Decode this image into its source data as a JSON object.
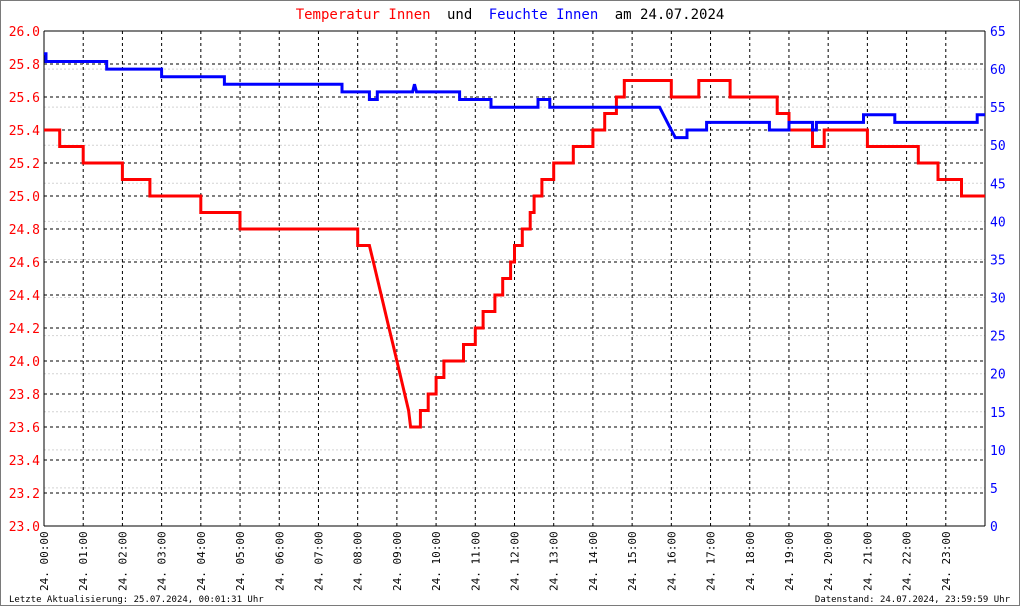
{
  "chart_data": {
    "type": "line",
    "title": {
      "series1_name": "Temperatur Innen",
      "connector": "und",
      "series2_name": "Feuchte Innen",
      "suffix": "am 24.07.2024"
    },
    "x_ticks": [
      "24. 00:00",
      "24. 01:00",
      "24. 02:00",
      "24. 03:00",
      "24. 04:00",
      "24. 05:00",
      "24. 06:00",
      "24. 07:00",
      "24. 08:00",
      "24. 09:00",
      "24. 10:00",
      "24. 11:00",
      "24. 12:00",
      "24. 13:00",
      "24. 14:00",
      "24. 15:00",
      "24. 16:00",
      "24. 17:00",
      "24. 18:00",
      "24. 19:00",
      "24. 20:00",
      "24. 21:00",
      "24. 22:00",
      "24. 23:00"
    ],
    "x_unit": "hours",
    "xlim": [
      0,
      24
    ],
    "ylim_left": [
      23.0,
      26.0
    ],
    "ylim_right": [
      0,
      65
    ],
    "y_left_ticks": [
      "23.0",
      "23.2",
      "23.4",
      "23.6",
      "23.8",
      "24.0",
      "24.2",
      "24.4",
      "24.6",
      "24.8",
      "25.0",
      "25.2",
      "25.4",
      "25.6",
      "25.8",
      "26.0"
    ],
    "y_right_ticks": [
      "0",
      "5",
      "10",
      "15",
      "20",
      "25",
      "30",
      "35",
      "40",
      "45",
      "50",
      "55",
      "60",
      "65"
    ],
    "grid": true,
    "series": [
      {
        "name": "Temperatur Innen",
        "axis": "left",
        "color": "#ff0000",
        "points": [
          [
            0.0,
            25.4
          ],
          [
            0.4,
            25.4
          ],
          [
            0.4,
            25.3
          ],
          [
            1.0,
            25.3
          ],
          [
            1.0,
            25.2
          ],
          [
            2.0,
            25.2
          ],
          [
            2.0,
            25.1
          ],
          [
            2.7,
            25.1
          ],
          [
            2.7,
            25.0
          ],
          [
            4.0,
            25.0
          ],
          [
            4.0,
            24.9
          ],
          [
            5.0,
            24.9
          ],
          [
            5.0,
            24.8
          ],
          [
            8.0,
            24.8
          ],
          [
            8.0,
            24.7
          ],
          [
            8.3,
            24.7
          ],
          [
            8.4,
            24.6
          ],
          [
            8.5,
            24.5
          ],
          [
            8.6,
            24.4
          ],
          [
            8.7,
            24.3
          ],
          [
            8.8,
            24.2
          ],
          [
            8.9,
            24.1
          ],
          [
            9.0,
            24.0
          ],
          [
            9.1,
            23.9
          ],
          [
            9.2,
            23.8
          ],
          [
            9.3,
            23.7
          ],
          [
            9.35,
            23.6
          ],
          [
            9.6,
            23.6
          ],
          [
            9.6,
            23.7
          ],
          [
            9.8,
            23.7
          ],
          [
            9.8,
            23.8
          ],
          [
            10.0,
            23.8
          ],
          [
            10.0,
            23.9
          ],
          [
            10.2,
            23.9
          ],
          [
            10.2,
            24.0
          ],
          [
            10.7,
            24.0
          ],
          [
            10.7,
            24.1
          ],
          [
            11.0,
            24.1
          ],
          [
            11.0,
            24.2
          ],
          [
            11.2,
            24.2
          ],
          [
            11.2,
            24.3
          ],
          [
            11.5,
            24.3
          ],
          [
            11.5,
            24.4
          ],
          [
            11.7,
            24.4
          ],
          [
            11.7,
            24.5
          ],
          [
            11.9,
            24.5
          ],
          [
            11.9,
            24.6
          ],
          [
            12.0,
            24.6
          ],
          [
            12.0,
            24.7
          ],
          [
            12.2,
            24.7
          ],
          [
            12.2,
            24.8
          ],
          [
            12.4,
            24.8
          ],
          [
            12.4,
            24.9
          ],
          [
            12.5,
            24.9
          ],
          [
            12.5,
            25.0
          ],
          [
            12.7,
            25.0
          ],
          [
            12.7,
            25.1
          ],
          [
            13.0,
            25.1
          ],
          [
            13.0,
            25.2
          ],
          [
            13.5,
            25.2
          ],
          [
            13.5,
            25.3
          ],
          [
            14.0,
            25.3
          ],
          [
            14.0,
            25.4
          ],
          [
            14.3,
            25.4
          ],
          [
            14.3,
            25.5
          ],
          [
            14.6,
            25.5
          ],
          [
            14.6,
            25.6
          ],
          [
            14.8,
            25.6
          ],
          [
            14.8,
            25.7
          ],
          [
            16.0,
            25.7
          ],
          [
            16.0,
            25.6
          ],
          [
            16.7,
            25.6
          ],
          [
            16.7,
            25.7
          ],
          [
            17.5,
            25.7
          ],
          [
            17.5,
            25.6
          ],
          [
            18.7,
            25.6
          ],
          [
            18.7,
            25.5
          ],
          [
            19.0,
            25.5
          ],
          [
            19.0,
            25.4
          ],
          [
            19.6,
            25.4
          ],
          [
            19.6,
            25.3
          ],
          [
            19.9,
            25.3
          ],
          [
            19.9,
            25.4
          ],
          [
            21.0,
            25.4
          ],
          [
            21.0,
            25.3
          ],
          [
            22.3,
            25.3
          ],
          [
            22.3,
            25.2
          ],
          [
            22.8,
            25.2
          ],
          [
            22.8,
            25.1
          ],
          [
            23.4,
            25.1
          ],
          [
            23.4,
            25.0
          ],
          [
            24.0,
            25.0
          ]
        ]
      },
      {
        "name": "Feuchte Innen",
        "axis": "right",
        "color": "#0000ff",
        "points": [
          [
            0.0,
            62
          ],
          [
            0.05,
            62
          ],
          [
            0.05,
            61
          ],
          [
            1.6,
            61
          ],
          [
            1.6,
            60
          ],
          [
            3.0,
            60
          ],
          [
            3.0,
            59
          ],
          [
            4.6,
            59
          ],
          [
            4.6,
            58
          ],
          [
            7.6,
            58
          ],
          [
            7.6,
            57
          ],
          [
            8.3,
            57
          ],
          [
            8.3,
            56
          ],
          [
            8.5,
            56
          ],
          [
            8.5,
            57
          ],
          [
            9.4,
            57
          ],
          [
            9.45,
            58
          ],
          [
            9.5,
            57
          ],
          [
            10.6,
            57
          ],
          [
            10.6,
            56
          ],
          [
            11.4,
            56
          ],
          [
            11.4,
            55
          ],
          [
            12.6,
            55
          ],
          [
            12.6,
            56
          ],
          [
            12.9,
            56
          ],
          [
            12.9,
            55
          ],
          [
            15.7,
            55
          ],
          [
            15.9,
            53
          ],
          [
            16.0,
            52
          ],
          [
            16.1,
            51
          ],
          [
            16.4,
            51
          ],
          [
            16.4,
            52
          ],
          [
            16.9,
            52
          ],
          [
            16.9,
            53
          ],
          [
            18.5,
            53
          ],
          [
            18.5,
            52
          ],
          [
            19.0,
            52
          ],
          [
            19.0,
            53
          ],
          [
            19.6,
            53
          ],
          [
            19.6,
            52
          ],
          [
            19.7,
            52
          ],
          [
            19.7,
            53
          ],
          [
            20.9,
            53
          ],
          [
            20.9,
            54
          ],
          [
            21.7,
            54
          ],
          [
            21.7,
            53
          ],
          [
            23.8,
            53
          ],
          [
            23.8,
            54
          ],
          [
            24.0,
            54
          ]
        ]
      }
    ]
  },
  "footer": {
    "left": "Letzte Aktualisierung: 25.07.2024, 00:01:31 Uhr",
    "right": "Datenstand: 24.07.2024, 23:59:59 Uhr"
  }
}
